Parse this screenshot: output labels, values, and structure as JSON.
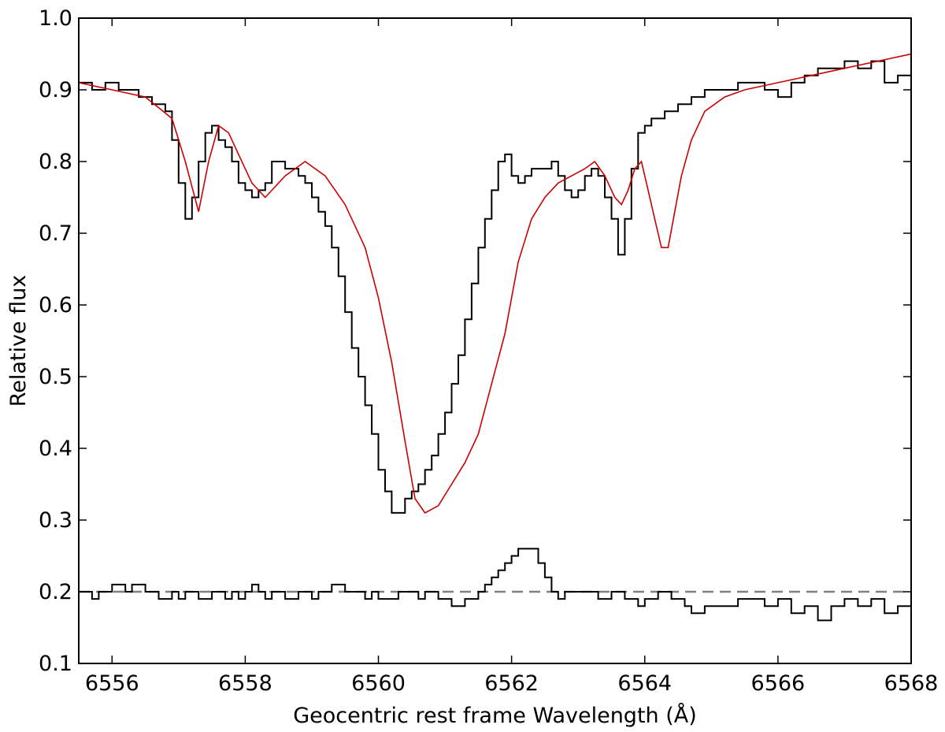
{
  "chart_data": {
    "type": "line",
    "title": "",
    "xlabel": "Geocentric rest frame Wavelength (Å)",
    "ylabel": "Relative flux",
    "xlim": [
      6555.5,
      6568
    ],
    "ylim": [
      0.1,
      1.0
    ],
    "xticks": [
      6556,
      6558,
      6560,
      6562,
      6564,
      6566,
      6568
    ],
    "xtick_labels": [
      "6556",
      "6558",
      "6560",
      "6562",
      "6564",
      "6566",
      "6568"
    ],
    "yticks": [
      0.1,
      0.2,
      0.3,
      0.4,
      0.5,
      0.6,
      0.7,
      0.8,
      0.9,
      1.0
    ],
    "ytick_labels": [
      "0.1",
      "0.2",
      "0.3",
      "0.4",
      "0.5",
      "0.6",
      "0.7",
      "0.8",
      "0.9",
      "1.0"
    ],
    "grid": false,
    "legend": "none",
    "reference_line": {
      "y": 0.2,
      "style": "dashed",
      "color": "#808080"
    },
    "series": [
      {
        "style": "steps",
        "color": "#000000",
        "x": [
          6555.5,
          6555.6,
          6555.7,
          6555.8,
          6555.9,
          6556.0,
          6556.1,
          6556.2,
          6556.3,
          6556.4,
          6556.5,
          6556.6,
          6556.7,
          6556.8,
          6556.9,
          6557.0,
          6557.1,
          6557.2,
          6557.3,
          6557.4,
          6557.5,
          6557.6,
          6557.7,
          6557.8,
          6557.9,
          6558.0,
          6558.1,
          6558.2,
          6558.3,
          6558.4,
          6558.5,
          6558.6,
          6558.7,
          6558.8,
          6558.9,
          6559.0,
          6559.1,
          6559.2,
          6559.3,
          6559.4,
          6559.5,
          6559.6,
          6559.7,
          6559.8,
          6559.9,
          6560.0,
          6560.1,
          6560.2,
          6560.3,
          6560.4,
          6560.5,
          6560.6,
          6560.7,
          6560.8,
          6560.9,
          6561.0,
          6561.1,
          6561.2,
          6561.3,
          6561.4,
          6561.5,
          6561.6,
          6561.7,
          6561.8,
          6561.9,
          6562.0,
          6562.1,
          6562.2,
          6562.3,
          6562.4,
          6562.5,
          6562.6,
          6562.7,
          6562.8,
          6562.9,
          6563.0,
          6563.1,
          6563.2,
          6563.3,
          6563.4,
          6563.5,
          6563.6,
          6563.7,
          6563.8,
          6563.9,
          6564.0,
          6564.1,
          6564.2,
          6564.3,
          6564.4,
          6564.5,
          6564.6,
          6564.7,
          6564.8,
          6564.9,
          6565.0,
          6565.2,
          6565.4,
          6565.6,
          6565.8,
          6566.0,
          6566.2,
          6566.4,
          6566.6,
          6566.8,
          6567.0,
          6567.2,
          6567.4,
          6567.6,
          6567.8,
          6568.0
        ],
        "y": [
          0.91,
          0.91,
          0.9,
          0.9,
          0.91,
          0.91,
          0.9,
          0.9,
          0.9,
          0.89,
          0.89,
          0.88,
          0.88,
          0.87,
          0.83,
          0.77,
          0.72,
          0.75,
          0.8,
          0.84,
          0.85,
          0.83,
          0.82,
          0.8,
          0.77,
          0.76,
          0.75,
          0.76,
          0.77,
          0.8,
          0.8,
          0.79,
          0.79,
          0.78,
          0.77,
          0.75,
          0.73,
          0.71,
          0.68,
          0.64,
          0.59,
          0.54,
          0.5,
          0.46,
          0.42,
          0.37,
          0.34,
          0.31,
          0.31,
          0.33,
          0.34,
          0.35,
          0.37,
          0.39,
          0.42,
          0.45,
          0.49,
          0.53,
          0.58,
          0.63,
          0.68,
          0.72,
          0.76,
          0.8,
          0.81,
          0.78,
          0.77,
          0.78,
          0.79,
          0.79,
          0.79,
          0.8,
          0.78,
          0.76,
          0.75,
          0.76,
          0.78,
          0.79,
          0.78,
          0.75,
          0.72,
          0.67,
          0.72,
          0.79,
          0.84,
          0.85,
          0.86,
          0.86,
          0.87,
          0.87,
          0.88,
          0.88,
          0.89,
          0.89,
          0.9,
          0.9,
          0.9,
          0.91,
          0.91,
          0.9,
          0.89,
          0.91,
          0.92,
          0.93,
          0.93,
          0.94,
          0.93,
          0.94,
          0.91,
          0.92,
          0.93
        ],
        "name": ""
      },
      {
        "style": "line",
        "color": "#cc0000",
        "x": [
          6555.5,
          6556.0,
          6556.5,
          6556.9,
          6557.1,
          6557.3,
          6557.45,
          6557.6,
          6557.75,
          6557.9,
          6558.1,
          6558.3,
          6558.6,
          6558.9,
          6559.2,
          6559.5,
          6559.8,
          6560.0,
          6560.2,
          6560.4,
          6560.55,
          6560.7,
          6560.9,
          6561.1,
          6561.3,
          6561.5,
          6561.7,
          6561.9,
          6562.1,
          6562.3,
          6562.5,
          6562.7,
          6562.9,
          6563.1,
          6563.25,
          6563.4,
          6563.55,
          6563.65,
          6563.75,
          6563.85,
          6563.95,
          6564.05,
          6564.15,
          6564.25,
          6564.35,
          6564.45,
          6564.55,
          6564.7,
          6564.9,
          6565.2,
          6565.5,
          6566.0,
          6566.5,
          6567.0,
          6567.5,
          6568.0
        ],
        "y": [
          0.91,
          0.9,
          0.89,
          0.86,
          0.8,
          0.73,
          0.8,
          0.85,
          0.84,
          0.81,
          0.77,
          0.75,
          0.78,
          0.8,
          0.78,
          0.74,
          0.68,
          0.61,
          0.52,
          0.41,
          0.33,
          0.31,
          0.32,
          0.35,
          0.38,
          0.42,
          0.49,
          0.56,
          0.66,
          0.72,
          0.75,
          0.77,
          0.78,
          0.79,
          0.8,
          0.78,
          0.75,
          0.74,
          0.76,
          0.79,
          0.8,
          0.76,
          0.72,
          0.68,
          0.68,
          0.73,
          0.78,
          0.83,
          0.87,
          0.89,
          0.9,
          0.91,
          0.92,
          0.93,
          0.94,
          0.95
        ],
        "name": ""
      },
      {
        "style": "steps",
        "color": "#000000",
        "x": [
          6555.5,
          6555.6,
          6555.7,
          6555.8,
          6555.9,
          6556.0,
          6556.1,
          6556.2,
          6556.3,
          6556.4,
          6556.5,
          6556.6,
          6556.7,
          6556.8,
          6556.9,
          6557.0,
          6557.1,
          6557.2,
          6557.3,
          6557.4,
          6557.5,
          6557.6,
          6557.7,
          6557.8,
          6557.9,
          6558.0,
          6558.1,
          6558.2,
          6558.3,
          6558.4,
          6558.5,
          6558.6,
          6558.7,
          6558.8,
          6558.9,
          6559.0,
          6559.1,
          6559.2,
          6559.3,
          6559.4,
          6559.5,
          6559.6,
          6559.7,
          6559.8,
          6559.9,
          6560.0,
          6560.1,
          6560.2,
          6560.3,
          6560.4,
          6560.5,
          6560.6,
          6560.7,
          6560.8,
          6560.9,
          6561.0,
          6561.1,
          6561.2,
          6561.3,
          6561.4,
          6561.5,
          6561.6,
          6561.7,
          6561.8,
          6561.9,
          6562.0,
          6562.1,
          6562.2,
          6562.3,
          6562.4,
          6562.5,
          6562.6,
          6562.7,
          6562.8,
          6562.9,
          6563.0,
          6563.1,
          6563.2,
          6563.3,
          6563.4,
          6563.5,
          6563.6,
          6563.7,
          6563.8,
          6563.9,
          6564.0,
          6564.1,
          6564.2,
          6564.3,
          6564.4,
          6564.5,
          6564.6,
          6564.7,
          6564.8,
          6564.9,
          6565.0,
          6565.2,
          6565.4,
          6565.6,
          6565.8,
          6566.0,
          6566.2,
          6566.4,
          6566.6,
          6566.8,
          6567.0,
          6567.2,
          6567.4,
          6567.6,
          6567.8,
          6568.0
        ],
        "y": [
          0.2,
          0.2,
          0.19,
          0.2,
          0.2,
          0.21,
          0.21,
          0.2,
          0.21,
          0.21,
          0.2,
          0.2,
          0.19,
          0.19,
          0.2,
          0.19,
          0.2,
          0.2,
          0.19,
          0.19,
          0.2,
          0.2,
          0.19,
          0.2,
          0.19,
          0.2,
          0.21,
          0.2,
          0.19,
          0.2,
          0.2,
          0.19,
          0.19,
          0.2,
          0.2,
          0.19,
          0.2,
          0.2,
          0.21,
          0.21,
          0.2,
          0.2,
          0.2,
          0.19,
          0.2,
          0.19,
          0.19,
          0.19,
          0.2,
          0.2,
          0.2,
          0.19,
          0.2,
          0.2,
          0.19,
          0.19,
          0.18,
          0.18,
          0.19,
          0.19,
          0.2,
          0.21,
          0.22,
          0.23,
          0.24,
          0.25,
          0.26,
          0.26,
          0.26,
          0.24,
          0.22,
          0.2,
          0.19,
          0.2,
          0.2,
          0.2,
          0.2,
          0.2,
          0.19,
          0.19,
          0.2,
          0.2,
          0.19,
          0.19,
          0.18,
          0.19,
          0.19,
          0.2,
          0.2,
          0.19,
          0.19,
          0.18,
          0.17,
          0.17,
          0.18,
          0.18,
          0.18,
          0.19,
          0.19,
          0.18,
          0.19,
          0.17,
          0.18,
          0.16,
          0.18,
          0.19,
          0.18,
          0.19,
          0.17,
          0.18,
          0.18
        ],
        "name": ""
      }
    ]
  }
}
